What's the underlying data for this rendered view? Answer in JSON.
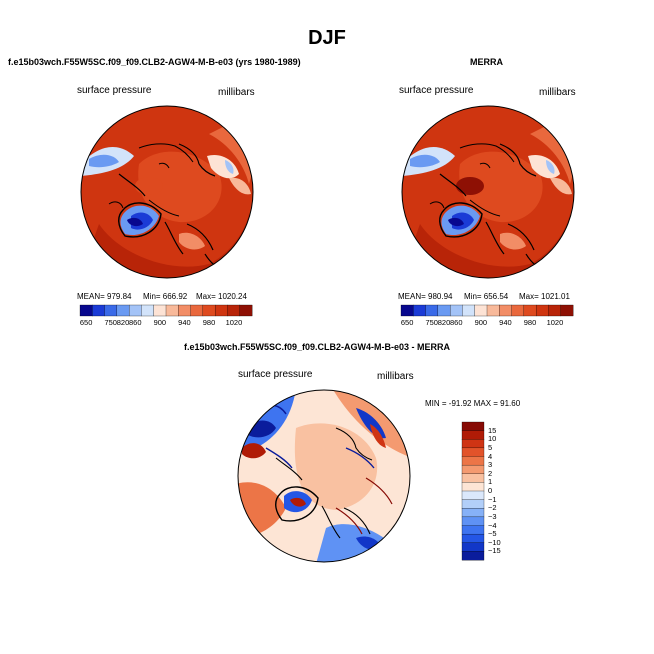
{
  "title": "DJF",
  "panels": [
    {
      "title": "f.e15b03wch.F55W5SC.f09_f09.CLB2-AGW4-M-B-e03 (yrs 1980-1989)",
      "field_label": "surface pressure",
      "units_label": "millibars",
      "stats_mean": "MEAN=  979.84",
      "stats_min": "Min=  666.92",
      "stats_max": "Max=  1020.24",
      "colorbar_ticks": [
        "650",
        "750",
        "820",
        "860",
        "900",
        "940",
        "980",
        "1020"
      ]
    },
    {
      "title": "MERRA",
      "field_label": "surface pressure",
      "units_label": "millibars",
      "stats_mean": "MEAN=  980.94",
      "stats_min": "Min=  656.54",
      "stats_max": "Max=  1021.01",
      "colorbar_ticks": [
        "650",
        "750",
        "820",
        "860",
        "900",
        "940",
        "980",
        "1020"
      ]
    }
  ],
  "diff": {
    "title": "f.e15b03wch.F55W5SC.f09_f09.CLB2-AGW4-M-B-e03 - MERRA",
    "field_label": "surface pressure",
    "units_label": "millibars",
    "minmax_text": "MIN = -91.92 MAX =  91.60",
    "legend_ticks": [
      "15",
      "10",
      "5",
      "4",
      "3",
      "2",
      "1",
      "0",
      "−1",
      "−2",
      "−3",
      "−4",
      "−5",
      "−10",
      "−15"
    ]
  },
  "colors": {
    "abs_scale": [
      "#08088e",
      "#1b3bd6",
      "#3a6ae8",
      "#6a9af2",
      "#a3c3f7",
      "#d2e3fa",
      "#fde3d5",
      "#f8b99a",
      "#f28d66",
      "#e9683d",
      "#de4a1f",
      "#cf3510",
      "#b82408",
      "#8e1004"
    ],
    "diff_scale": [
      "#0a1c9c",
      "#1237c8",
      "#2456e6",
      "#3e74f0",
      "#5f92f4",
      "#86b1f7",
      "#b2cff9",
      "#dbe8fb",
      "#fde5d5",
      "#f9c1a1",
      "#f49a70",
      "#ec7547",
      "#e2532a",
      "#cf3414",
      "#b01b06",
      "#870a04"
    ],
    "land_outline": "#000000"
  }
}
